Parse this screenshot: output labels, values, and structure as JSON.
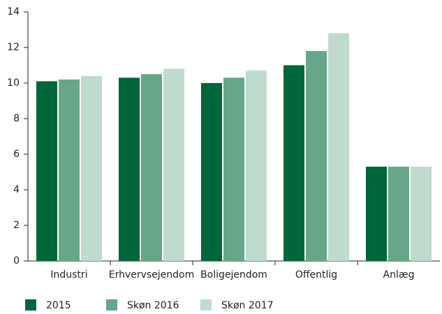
{
  "chart_data": {
    "type": "bar",
    "categories": [
      "Industri",
      "Erhvervsejendom",
      "Boligejendom",
      "Offentlig",
      "Anlæg"
    ],
    "series": [
      {
        "name": "2015",
        "color": "#00673a",
        "values": [
          10.1,
          10.3,
          10.0,
          11.0,
          5.3
        ]
      },
      {
        "name": "Skøn 2016",
        "color": "#67a689",
        "values": [
          10.2,
          10.5,
          10.3,
          11.8,
          5.3
        ]
      },
      {
        "name": "Skøn 2017",
        "color": "#bedbcd",
        "values": [
          10.4,
          10.8,
          10.7,
          12.8,
          5.3
        ]
      }
    ],
    "ylim": [
      0,
      14
    ],
    "yticks": [
      0,
      2,
      4,
      6,
      8,
      10,
      12,
      14
    ],
    "grid": false,
    "legend": "bottom"
  }
}
